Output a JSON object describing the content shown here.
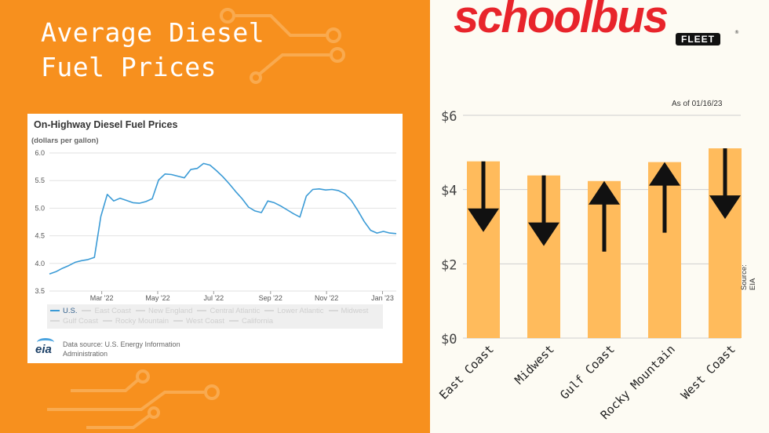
{
  "headline": [
    "Average Diesel",
    "Fuel Prices"
  ],
  "eia_chart": {
    "title": "On-Highway Diesel Fuel Prices",
    "units": "(dollars per gallon)",
    "legend": [
      "U.S.",
      "East Coast",
      "New England",
      "Central Atlantic",
      "Lower Atlantic",
      "Midwest",
      "Gulf Coast",
      "Rocky Mountain",
      "West Coast",
      "California"
    ],
    "source": "Data source: U.S. Energy Information Administration",
    "logo": "eia"
  },
  "brand": {
    "name": "schoolbus",
    "sub": "FLEET",
    "mark": "®"
  },
  "as_of": "As of 01/16/23",
  "source_note": "Source: EIA",
  "chart_data": [
    {
      "type": "line",
      "title": "On-Highway Diesel Fuel Prices",
      "ylabel": "(dollars per gallon)",
      "ylim": [
        3.5,
        6.0
      ],
      "yticks": [
        "3.5",
        "4.0",
        "4.5",
        "5.0",
        "5.5",
        "6.0"
      ],
      "xtick_labels": [
        "Mar '22",
        "May '22",
        "Jul '22",
        "Sep '22",
        "Nov '22",
        "Jan '23"
      ],
      "xlim": [
        "2022-01-03",
        "2023-01-16"
      ],
      "color": "#3b9bd6",
      "grid": true,
      "legend": "bottom",
      "series": [
        {
          "name": "U.S.",
          "x": [
            "2022-01-03",
            "2022-01-10",
            "2022-01-17",
            "2022-01-24",
            "2022-01-31",
            "2022-02-07",
            "2022-02-14",
            "2022-02-21",
            "2022-02-28",
            "2022-03-07",
            "2022-03-14",
            "2022-03-21",
            "2022-03-28",
            "2022-04-04",
            "2022-04-11",
            "2022-04-18",
            "2022-04-25",
            "2022-05-02",
            "2022-05-09",
            "2022-05-16",
            "2022-05-23",
            "2022-05-30",
            "2022-06-06",
            "2022-06-13",
            "2022-06-20",
            "2022-06-27",
            "2022-07-04",
            "2022-07-11",
            "2022-07-18",
            "2022-07-25",
            "2022-08-01",
            "2022-08-08",
            "2022-08-15",
            "2022-08-22",
            "2022-08-29",
            "2022-09-05",
            "2022-09-12",
            "2022-09-19",
            "2022-09-26",
            "2022-10-03",
            "2022-10-10",
            "2022-10-17",
            "2022-10-24",
            "2022-10-31",
            "2022-11-07",
            "2022-11-14",
            "2022-11-21",
            "2022-11-28",
            "2022-12-05",
            "2022-12-12",
            "2022-12-19",
            "2022-12-26",
            "2023-01-02",
            "2023-01-09",
            "2023-01-16"
          ],
          "values": [
            3.81,
            3.85,
            3.91,
            3.96,
            4.02,
            4.05,
            4.07,
            4.11,
            4.85,
            5.25,
            5.13,
            5.18,
            5.14,
            5.1,
            5.09,
            5.12,
            5.17,
            5.51,
            5.62,
            5.61,
            5.58,
            5.55,
            5.7,
            5.72,
            5.81,
            5.78,
            5.68,
            5.57,
            5.44,
            5.3,
            5.17,
            5.02,
            4.95,
            4.92,
            5.13,
            5.1,
            5.04,
            4.97,
            4.9,
            4.84,
            5.22,
            5.34,
            5.35,
            5.33,
            5.34,
            5.32,
            5.26,
            5.14,
            4.96,
            4.76,
            4.6,
            4.55,
            4.58,
            4.55,
            4.54
          ]
        }
      ]
    },
    {
      "type": "bar",
      "title": "",
      "categories": [
        "East Coast",
        "Midwest",
        "Gulf Coast",
        "Rocky Mountain",
        "West Coast"
      ],
      "values": [
        4.76,
        4.38,
        4.23,
        4.74,
        5.11
      ],
      "trend": [
        "down",
        "down",
        "up",
        "up",
        "down"
      ],
      "ylim": [
        0,
        6
      ],
      "yticks": [
        "$0",
        "$2",
        "$4",
        "$6"
      ],
      "bar_color": "#ffbb5c",
      "arrow_color": "#111111",
      "grid": true
    }
  ]
}
